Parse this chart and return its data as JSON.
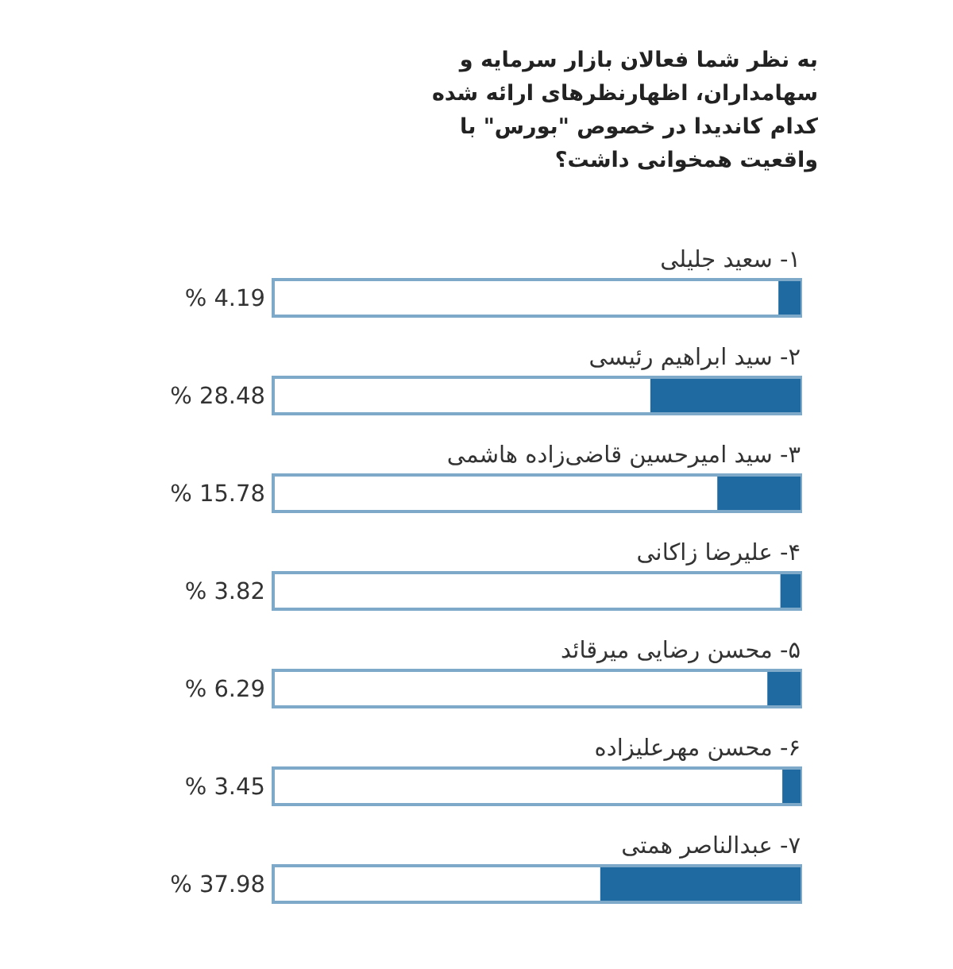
{
  "chart_data": {
    "type": "bar",
    "orientation": "horizontal",
    "title": "به نظر شما فعالان بازار سرمایه و سهامداران، اظهارنظرهای ارائه شده کدام کاندیدا در خصوص \"بورس\" با واقعیت همخوانی داشت؟",
    "categories": [
      "۱- سعید جلیلی",
      "۲- سید ابراهیم رئیسی",
      "۳- سید امیرحسین قاضی‌زاده هاشمی",
      "۴- علیرضا زاکانی",
      "۵- محسن رضایی میرقائد",
      "۶- محسن مهرعلیزاده",
      "۷- عبدالناصر همتی"
    ],
    "values": [
      4.19,
      28.48,
      15.78,
      3.82,
      6.29,
      3.45,
      37.98
    ],
    "value_labels": [
      "% 4.19",
      "% 28.48",
      "% 15.78",
      "% 3.82",
      "% 6.29",
      "% 3.45",
      "% 37.98"
    ],
    "color": "#1f6aa0",
    "xlim": [
      100,
      0
    ]
  }
}
